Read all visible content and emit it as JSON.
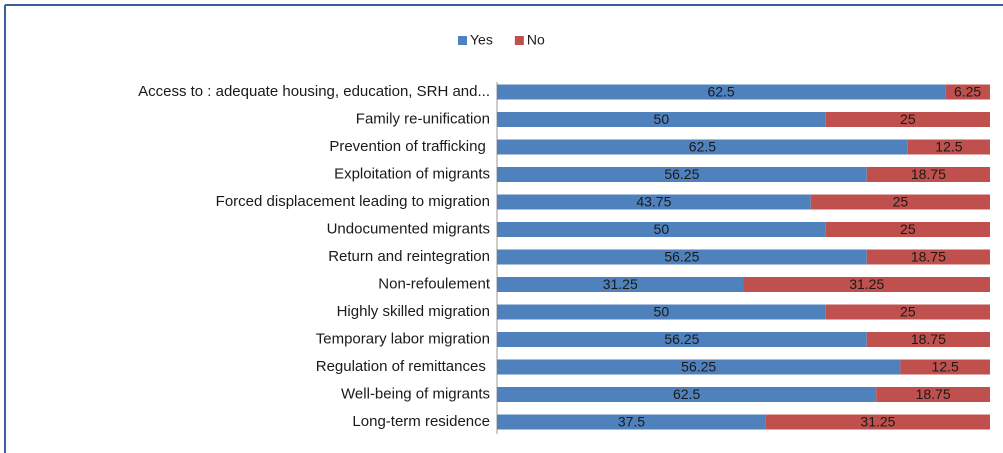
{
  "chart_data": {
    "type": "bar",
    "orientation": "horizontal",
    "stacking": "percent",
    "categories": [
      "Access to : adequate housing, education, SRH and...",
      "Family re-unification",
      "Prevention of trafficking ",
      "Exploitation of migrants",
      "Forced displacement leading to migration",
      "Undocumented migrants",
      "Return and reintegration",
      "Non-refoulement",
      "Highly skilled migration",
      "Temporary labor migration",
      "Regulation of remittances ",
      "Well-being of migrants",
      "Long-term residence"
    ],
    "series": [
      {
        "name": "Yes",
        "color": "#4f81bd",
        "values": [
          62.5,
          50,
          62.5,
          56.25,
          43.75,
          50,
          56.25,
          31.25,
          50,
          56.25,
          56.25,
          62.5,
          37.5
        ]
      },
      {
        "name": "No",
        "color": "#c0504d",
        "values": [
          6.25,
          25,
          12.5,
          18.75,
          25,
          25,
          18.75,
          31.25,
          25,
          18.75,
          12.5,
          18.75,
          31.25
        ]
      }
    ],
    "legend": "top"
  }
}
